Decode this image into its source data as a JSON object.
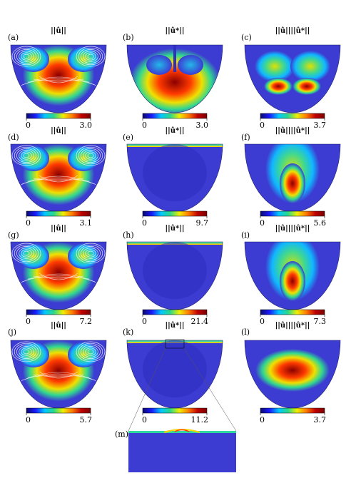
{
  "colorbar_stops": [
    "#0a0a6e",
    "#1a1aff",
    "#00c8ff",
    "#2bd88a",
    "#f0f000",
    "#ff7a00",
    "#c00000",
    "#7a0000"
  ],
  "domain_fill": "#3c3cd2",
  "rows": [
    {
      "panels": [
        {
          "label": "(a)",
          "title": "||û||",
          "cb_min": "0",
          "cb_max": "3.0"
        },
        {
          "label": "(b)",
          "title": "||û*||",
          "cb_min": "0",
          "cb_max": "3.0"
        },
        {
          "label": "(c)",
          "title": "||û||||û*||",
          "cb_min": "0",
          "cb_max": "3.7"
        }
      ]
    },
    {
      "panels": [
        {
          "label": "(d)",
          "title": "||û||",
          "cb_min": "0",
          "cb_max": "3.1"
        },
        {
          "label": "(e)",
          "title": "||û*||",
          "cb_min": "0",
          "cb_max": "9.7"
        },
        {
          "label": "(f)",
          "title": "||û||||û*||",
          "cb_min": "0",
          "cb_max": "5.6"
        }
      ]
    },
    {
      "panels": [
        {
          "label": "(g)",
          "title": "||û||",
          "cb_min": "0",
          "cb_max": "7.2"
        },
        {
          "label": "(h)",
          "title": "||û*||",
          "cb_min": "0",
          "cb_max": "21.4"
        },
        {
          "label": "(i)",
          "title": "||û||||û*||",
          "cb_min": "0",
          "cb_max": "7.3"
        }
      ]
    },
    {
      "panels": [
        {
          "label": "(j)",
          "title": "||û||",
          "cb_min": "0",
          "cb_max": "5.7"
        },
        {
          "label": "(k)",
          "title": "||û*||",
          "cb_min": "0",
          "cb_max": "11.2"
        },
        {
          "label": "(l)",
          "title": "||û||||û*||",
          "cb_min": "0",
          "cb_max": "3.7"
        }
      ]
    }
  ],
  "zoom": {
    "label": "(m)"
  }
}
